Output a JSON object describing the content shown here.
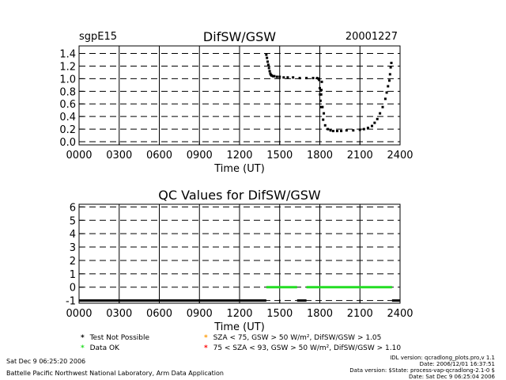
{
  "header": {
    "site": "sgpE15",
    "date": "20001227"
  },
  "legend": {
    "items": [
      {
        "symbol": "*",
        "color": "#000000",
        "label": "Test Not Possible"
      },
      {
        "symbol": "*",
        "color": "#22dd22",
        "label": "Data OK"
      },
      {
        "symbol": "*",
        "color": "#ff9900",
        "label": "SZA < 75, GSW > 50 W/m², DifSW/GSW > 1.05"
      },
      {
        "symbol": "*",
        "color": "#ff0000",
        "label": "75 < SZA < 93, GSW > 50 W/m², DifSW/GSW > 1.10"
      }
    ]
  },
  "footer": {
    "run_date": "Sat Dec  9 06:25:20 2006",
    "lab": "Battelle Pacific Northwest National Laboratory, Arm Data Application",
    "idl_version": "IDL version: qcradlong_plots.pro,v 1.1",
    "idl_date": "Date: 2006/12/01 16:37:51",
    "data_version": "Data version: $State: process-vap-qcradlong-2.1-0 $",
    "data_date": "Date: Sat Dec  9 06:25:04 2006"
  },
  "chart_data": [
    {
      "type": "scatter",
      "title": "DifSW/GSW",
      "xlabel": "Time (UT)",
      "ylabel": "",
      "xlim": [
        0,
        24
      ],
      "ylim": [
        -0.05,
        1.52
      ],
      "x_ticks": [
        0,
        3,
        6,
        9,
        12,
        15,
        18,
        21,
        24
      ],
      "x_tick_labels": [
        "0000",
        "0300",
        "0600",
        "0900",
        "1200",
        "1500",
        "1800",
        "2100",
        "2400"
      ],
      "y_ticks": [
        0.0,
        0.2,
        0.4,
        0.6,
        0.8,
        1.0,
        1.2,
        1.4
      ],
      "y_tick_labels": [
        "0.0",
        "0.2",
        "0.4",
        "0.6",
        "0.8",
        "1.0",
        "1.2",
        "1.4"
      ],
      "grid": true,
      "series": [
        {
          "color": "#000000",
          "marker": "dot",
          "x": [
            14.0,
            14.05,
            14.1,
            14.15,
            14.2,
            14.25,
            14.3,
            14.35,
            14.4,
            14.5,
            14.6,
            14.8,
            15.0,
            15.3,
            15.6,
            16.0,
            16.5,
            17.0,
            17.5,
            17.8,
            17.9,
            17.95,
            18.0,
            18.02,
            18.05,
            18.08,
            18.1,
            18.12,
            18.15,
            18.2,
            18.25,
            18.3,
            18.4,
            18.6,
            18.8,
            19.0,
            19.3,
            19.6,
            20.0,
            20.5,
            21.0,
            21.3,
            21.6,
            21.9,
            22.1,
            22.3,
            22.5,
            22.7,
            22.9,
            23.0,
            23.1,
            23.2,
            23.25,
            23.3,
            23.35
          ],
          "y": [
            1.38,
            1.33,
            1.27,
            1.22,
            1.17,
            1.12,
            1.08,
            1.06,
            1.05,
            1.04,
            1.04,
            1.03,
            1.03,
            1.02,
            1.02,
            1.02,
            1.01,
            1.01,
            1.01,
            1.01,
            1.0,
            0.98,
            0.85,
            0.75,
            0.65,
            0.55,
            0.75,
            0.82,
            0.95,
            0.55,
            0.35,
            0.45,
            0.26,
            0.2,
            0.18,
            0.17,
            0.17,
            0.17,
            0.18,
            0.18,
            0.19,
            0.2,
            0.22,
            0.25,
            0.3,
            0.36,
            0.45,
            0.55,
            0.68,
            0.78,
            0.88,
            0.97,
            1.07,
            1.18,
            1.25
          ]
        }
      ]
    },
    {
      "type": "scatter",
      "title": "QC Values for DifSW/GSW",
      "xlabel": "Time (UT)",
      "ylabel": "",
      "xlim": [
        0,
        24
      ],
      "ylim": [
        -1.2,
        6.2
      ],
      "x_ticks": [
        0,
        3,
        6,
        9,
        12,
        15,
        18,
        21,
        24
      ],
      "x_tick_labels": [
        "0000",
        "0300",
        "0600",
        "0900",
        "1200",
        "1500",
        "1800",
        "2100",
        "2400"
      ],
      "y_ticks": [
        -1,
        0,
        1,
        2,
        3,
        4,
        5,
        6
      ],
      "y_tick_labels": [
        "-1",
        "0",
        "1",
        "2",
        "3",
        "4",
        "5",
        "6"
      ],
      "grid": true,
      "series": [
        {
          "color": "#000000",
          "x": [
            0.0,
            14.0
          ],
          "y": [
            -1,
            -1
          ]
        },
        {
          "color": "#22dd22",
          "x": [
            14.0,
            16.3
          ],
          "y": [
            0,
            0
          ]
        },
        {
          "color": "#000000",
          "x": [
            16.3,
            17.0
          ],
          "y": [
            -1,
            -1
          ]
        },
        {
          "color": "#22dd22",
          "x": [
            17.0,
            23.4
          ],
          "y": [
            0,
            0
          ]
        },
        {
          "color": "#000000",
          "x": [
            23.4,
            24.0
          ],
          "y": [
            -1,
            -1
          ]
        }
      ]
    }
  ]
}
